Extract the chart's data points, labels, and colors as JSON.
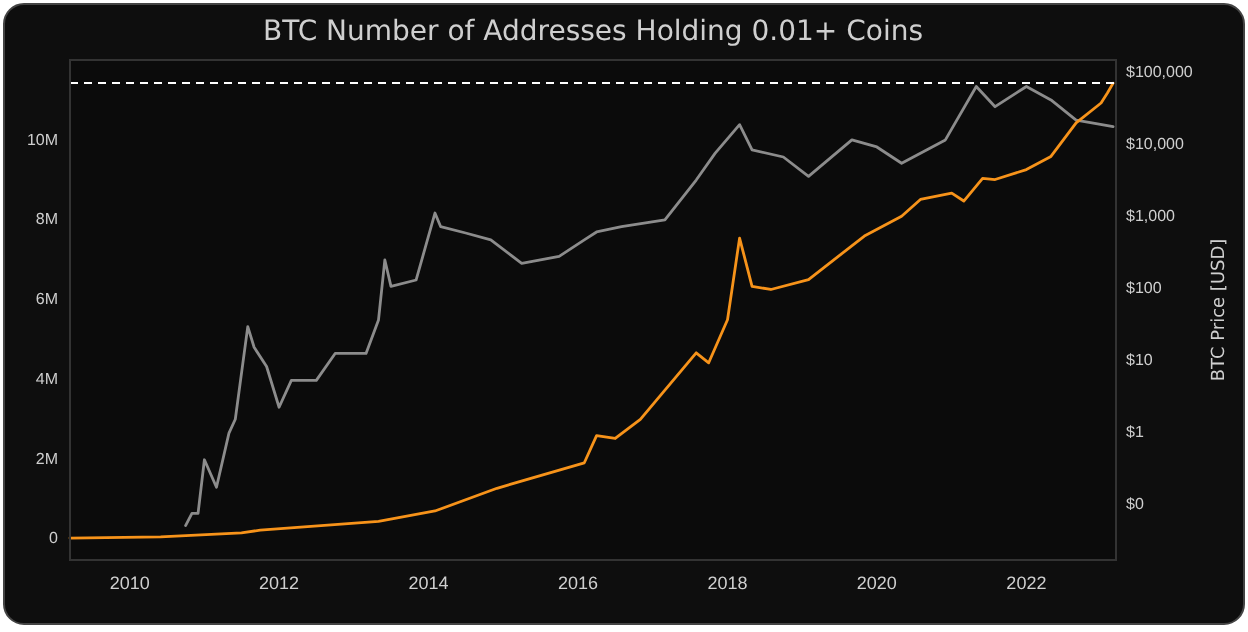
{
  "chart_data": {
    "type": "line",
    "title": "BTC Number of Addresses Holding 0.01+ Coins",
    "y2label": "BTC Price [USD]",
    "xlim": [
      "2009-03-15",
      "2023-03-15"
    ],
    "xticks": [
      {
        "value": "2010-01-01",
        "label": "2010"
      },
      {
        "value": "2012-01-01",
        "label": "2012"
      },
      {
        "value": "2014-01-01",
        "label": "2014"
      },
      {
        "value": "2016-01-01",
        "label": "2016"
      },
      {
        "value": "2018-01-01",
        "label": "2018"
      },
      {
        "value": "2020-01-01",
        "label": "2020"
      },
      {
        "value": "2022-01-01",
        "label": "2022"
      }
    ],
    "ylim": [
      -550000,
      12000000
    ],
    "yticks": [
      0,
      {
        "value": 2000000,
        "label": "2M"
      },
      {
        "value": 4000000,
        "label": "4M"
      },
      {
        "value": 6000000,
        "label": "6M"
      },
      {
        "value": 8000000,
        "label": "8M"
      },
      {
        "value": 10000000,
        "label": "10M"
      }
    ],
    "y2lim": [
      0.0166,
      147000
    ],
    "y2ticks": [
      {
        "value": 0.1,
        "label": "$0"
      },
      {
        "value": 1,
        "label": "$1"
      },
      {
        "value": 10,
        "label": "$10"
      },
      {
        "value": 100,
        "label": "$100"
      },
      {
        "value": 1000,
        "label": "$1,000"
      },
      {
        "value": 10000,
        "label": "$10,000"
      },
      {
        "value": 100000,
        "label": "$100,000"
      }
    ],
    "log": "y2",
    "grid": false,
    "ref_lines": [
      {
        "axis": "y",
        "value": 11420000,
        "color": "#ffffff",
        "line_style": "dashed"
      }
    ],
    "series": [
      {
        "axis": "y2",
        "color": "#8c8c8c",
        "x": [
          "2010-10",
          "2010-11",
          "2010-12",
          "2011-01",
          "2011-03",
          "2011-05",
          "2011-06",
          "2011-08",
          "2011-09",
          "2011-11",
          "2012-01",
          "2012-03",
          "2012-07",
          "2012-10",
          "2013-03",
          "2013-05",
          "2013-06",
          "2013-07",
          "2013-11",
          "2014-02",
          "2014-03",
          "2014-07",
          "2014-11",
          "2015-04",
          "2015-10",
          "2016-02",
          "2016-04",
          "2016-08",
          "2017-03",
          "2017-08",
          "2017-11",
          "2018-03",
          "2018-05",
          "2018-10",
          "2019-02",
          "2019-09",
          "2020-01",
          "2020-05",
          "2020-12",
          "2021-05",
          "2021-08",
          "2022-01",
          "2022-05",
          "2022-09",
          "2022-12",
          "2023-03"
        ],
        "values": [
          0.05,
          0.074,
          0.074,
          0.41,
          0.17,
          0.96,
          1.5,
          29,
          15,
          8.1,
          2.2,
          5.2,
          5.2,
          12.3,
          12.3,
          36,
          245,
          105,
          129,
          1100,
          710,
          580,
          465,
          220,
          275,
          465,
          600,
          710,
          880,
          3160,
          7400,
          18600,
          8300,
          6600,
          3550,
          11400,
          9100,
          5400,
          11400,
          63000,
          33000,
          63000,
          41000,
          21500,
          19400,
          17500
        ]
      },
      {
        "axis": "y",
        "color": "#f7931a",
        "x": [
          "2009-03-15",
          "2010-06",
          "2011-07",
          "2011-10",
          "2013-05",
          "2014-02",
          "2014-12",
          "2016-02",
          "2016-04",
          "2016-07",
          "2016-11",
          "2017-08",
          "2017-10",
          "2018-01",
          "2018-03",
          "2018-05",
          "2018-08",
          "2019-02",
          "2019-11",
          "2020-05",
          "2020-08",
          "2021-01",
          "2021-03",
          "2021-06",
          "2021-08",
          "2022-01",
          "2022-05",
          "2022-09",
          "2023-01",
          "2023-02",
          "2023-03"
        ],
        "values": [
          0,
          30000,
          130000,
          200000,
          420000,
          680000,
          1250000,
          1890000,
          2570000,
          2500000,
          2980000,
          4650000,
          4400000,
          5480000,
          7530000,
          6320000,
          6240000,
          6490000,
          7580000,
          8080000,
          8500000,
          8660000,
          8460000,
          9030000,
          9000000,
          9250000,
          9580000,
          10420000,
          10920000,
          11170000,
          11420000
        ]
      }
    ]
  }
}
